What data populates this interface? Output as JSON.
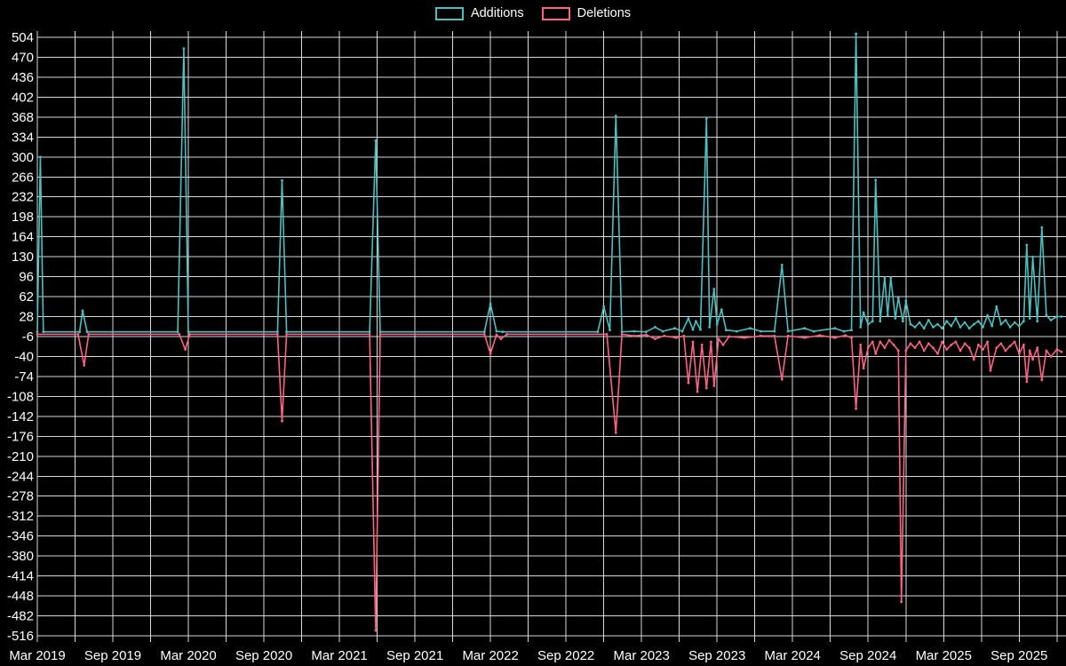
{
  "colors": {
    "background": "#000000",
    "grid": "#d9d9d9",
    "text": "#ffffff",
    "additions": "#4bc0c0",
    "deletions": "#ff6384"
  },
  "chart_data": {
    "type": "line",
    "title": "",
    "xlabel": "",
    "ylabel": "",
    "legend_position": "top",
    "grid": true,
    "x_range": [
      2019.17,
      2025.98
    ],
    "x_grid_step": 0.25,
    "y_axis": {
      "max": 504,
      "min": -516,
      "step": 34,
      "tick_labels": [
        "504",
        "470",
        "436",
        "402",
        "368",
        "334",
        "300",
        "266",
        "232",
        "198",
        "164",
        "130",
        "96",
        "62",
        "28",
        "-6",
        "-40",
        "-74",
        "-108",
        "-142",
        "-176",
        "-210",
        "-244",
        "-278",
        "-312",
        "-346",
        "-380",
        "-414",
        "-448",
        "-482",
        "-516"
      ]
    },
    "x_axis": {
      "ticks": [
        {
          "label": "Mar 2019",
          "pos": 2019.17
        },
        {
          "label": "Sep 2019",
          "pos": 2019.67
        },
        {
          "label": "Mar 2020",
          "pos": 2020.17
        },
        {
          "label": "Sep 2020",
          "pos": 2020.67
        },
        {
          "label": "Mar 2021",
          "pos": 2021.17
        },
        {
          "label": "Sep 2021",
          "pos": 2021.67
        },
        {
          "label": "Mar 2022",
          "pos": 2022.17
        },
        {
          "label": "Sep 2022",
          "pos": 2022.67
        },
        {
          "label": "Mar 2023",
          "pos": 2023.17
        },
        {
          "label": "Sep 2023",
          "pos": 2023.67
        },
        {
          "label": "Mar 2024",
          "pos": 2024.17
        },
        {
          "label": "Sep 2024",
          "pos": 2024.67
        },
        {
          "label": "Mar 2025",
          "pos": 2025.17
        },
        {
          "label": "Sep 2025",
          "pos": 2025.67
        }
      ]
    },
    "series": [
      {
        "name": "Deletions",
        "color": "#ff6384",
        "points": [
          [
            2019.17,
            -2
          ],
          [
            2019.44,
            -2
          ],
          [
            2019.48,
            -55
          ],
          [
            2019.51,
            -2
          ],
          [
            2020.11,
            -2
          ],
          [
            2020.15,
            -28
          ],
          [
            2020.18,
            -2
          ],
          [
            2020.76,
            -2
          ],
          [
            2020.79,
            -150
          ],
          [
            2020.82,
            -2
          ],
          [
            2021.37,
            -2
          ],
          [
            2021.41,
            -507
          ],
          [
            2021.44,
            -2
          ],
          [
            2022.13,
            -2
          ],
          [
            2022.17,
            -35
          ],
          [
            2022.21,
            -3
          ],
          [
            2022.24,
            -10
          ],
          [
            2022.28,
            -2
          ],
          [
            2022.94,
            -2
          ],
          [
            2023.0,
            -170
          ],
          [
            2023.04,
            -2
          ],
          [
            2023.12,
            -5
          ],
          [
            2023.2,
            -3
          ],
          [
            2023.26,
            -10
          ],
          [
            2023.32,
            -5
          ],
          [
            2023.4,
            -8
          ],
          [
            2023.45,
            -5
          ],
          [
            2023.48,
            -85
          ],
          [
            2023.51,
            -15
          ],
          [
            2023.54,
            -100
          ],
          [
            2023.57,
            -20
          ],
          [
            2023.6,
            -94
          ],
          [
            2023.63,
            -15
          ],
          [
            2023.65,
            -90
          ],
          [
            2023.68,
            -10
          ],
          [
            2023.71,
            -20
          ],
          [
            2023.75,
            -6
          ],
          [
            2023.85,
            -8
          ],
          [
            2023.96,
            -5
          ],
          [
            2024.05,
            -5
          ],
          [
            2024.1,
            -79
          ],
          [
            2024.14,
            -5
          ],
          [
            2024.25,
            -8
          ],
          [
            2024.35,
            -4
          ],
          [
            2024.45,
            -8
          ],
          [
            2024.52,
            -4
          ],
          [
            2024.56,
            -8
          ],
          [
            2024.59,
            -129
          ],
          [
            2024.62,
            -20
          ],
          [
            2024.64,
            -60
          ],
          [
            2024.67,
            -25
          ],
          [
            2024.7,
            -15
          ],
          [
            2024.72,
            -35
          ],
          [
            2024.75,
            -15
          ],
          [
            2024.78,
            -25
          ],
          [
            2024.81,
            -12
          ],
          [
            2024.84,
            -20
          ],
          [
            2024.87,
            -30
          ],
          [
            2024.89,
            -458
          ],
          [
            2024.92,
            -30
          ],
          [
            2024.95,
            -18
          ],
          [
            2024.98,
            -25
          ],
          [
            2025.01,
            -15
          ],
          [
            2025.04,
            -30
          ],
          [
            2025.07,
            -18
          ],
          [
            2025.1,
            -25
          ],
          [
            2025.13,
            -35
          ],
          [
            2025.16,
            -15
          ],
          [
            2025.19,
            -28
          ],
          [
            2025.22,
            -20
          ],
          [
            2025.25,
            -15
          ],
          [
            2025.28,
            -30
          ],
          [
            2025.31,
            -18
          ],
          [
            2025.34,
            -25
          ],
          [
            2025.37,
            -45
          ],
          [
            2025.4,
            -20
          ],
          [
            2025.43,
            -28
          ],
          [
            2025.46,
            -15
          ],
          [
            2025.48,
            -64
          ],
          [
            2025.52,
            -25
          ],
          [
            2025.55,
            -18
          ],
          [
            2025.58,
            -30
          ],
          [
            2025.61,
            -22
          ],
          [
            2025.64,
            -15
          ],
          [
            2025.67,
            -35
          ],
          [
            2025.7,
            -20
          ],
          [
            2025.72,
            -83
          ],
          [
            2025.74,
            -30
          ],
          [
            2025.76,
            -45
          ],
          [
            2025.79,
            -25
          ],
          [
            2025.82,
            -80
          ],
          [
            2025.85,
            -30
          ],
          [
            2025.88,
            -40
          ],
          [
            2025.92,
            -28
          ],
          [
            2025.95,
            -32
          ]
        ]
      },
      {
        "name": "Additions",
        "color": "#4bc0c0",
        "points": [
          [
            2019.17,
            2
          ],
          [
            2019.19,
            300
          ],
          [
            2019.21,
            2
          ],
          [
            2019.45,
            2
          ],
          [
            2019.47,
            38
          ],
          [
            2019.5,
            2
          ],
          [
            2020.1,
            2
          ],
          [
            2020.14,
            485
          ],
          [
            2020.17,
            2
          ],
          [
            2020.76,
            2
          ],
          [
            2020.79,
            260
          ],
          [
            2020.82,
            2
          ],
          [
            2021.37,
            2
          ],
          [
            2021.41,
            328
          ],
          [
            2021.44,
            2
          ],
          [
            2022.13,
            2
          ],
          [
            2022.17,
            50
          ],
          [
            2022.21,
            3
          ],
          [
            2022.25,
            2
          ],
          [
            2022.88,
            2
          ],
          [
            2022.92,
            45
          ],
          [
            2022.96,
            5
          ],
          [
            2023.0,
            370
          ],
          [
            2023.04,
            2
          ],
          [
            2023.12,
            3
          ],
          [
            2023.2,
            2
          ],
          [
            2023.26,
            10
          ],
          [
            2023.31,
            3
          ],
          [
            2023.39,
            8
          ],
          [
            2023.44,
            3
          ],
          [
            2023.48,
            25
          ],
          [
            2023.51,
            6
          ],
          [
            2023.53,
            20
          ],
          [
            2023.56,
            6
          ],
          [
            2023.6,
            366
          ],
          [
            2023.62,
            10
          ],
          [
            2023.65,
            75
          ],
          [
            2023.67,
            15
          ],
          [
            2023.7,
            40
          ],
          [
            2023.73,
            5
          ],
          [
            2023.8,
            3
          ],
          [
            2023.89,
            8
          ],
          [
            2023.96,
            3
          ],
          [
            2024.05,
            3
          ],
          [
            2024.1,
            116
          ],
          [
            2024.14,
            3
          ],
          [
            2024.25,
            8
          ],
          [
            2024.31,
            3
          ],
          [
            2024.45,
            8
          ],
          [
            2024.51,
            3
          ],
          [
            2024.56,
            5
          ],
          [
            2024.59,
            510
          ],
          [
            2024.62,
            10
          ],
          [
            2024.64,
            35
          ],
          [
            2024.67,
            15
          ],
          [
            2024.7,
            20
          ],
          [
            2024.72,
            261
          ],
          [
            2024.75,
            20
          ],
          [
            2024.78,
            95
          ],
          [
            2024.8,
            30
          ],
          [
            2024.82,
            95
          ],
          [
            2024.85,
            25
          ],
          [
            2024.87,
            60
          ],
          [
            2024.9,
            20
          ],
          [
            2024.92,
            55
          ],
          [
            2024.95,
            15
          ],
          [
            2024.98,
            10
          ],
          [
            2025.01,
            18
          ],
          [
            2025.04,
            8
          ],
          [
            2025.07,
            22
          ],
          [
            2025.1,
            10
          ],
          [
            2025.13,
            15
          ],
          [
            2025.16,
            8
          ],
          [
            2025.19,
            20
          ],
          [
            2025.22,
            12
          ],
          [
            2025.25,
            25
          ],
          [
            2025.28,
            10
          ],
          [
            2025.31,
            18
          ],
          [
            2025.34,
            8
          ],
          [
            2025.37,
            15
          ],
          [
            2025.4,
            20
          ],
          [
            2025.43,
            10
          ],
          [
            2025.46,
            30
          ],
          [
            2025.49,
            12
          ],
          [
            2025.52,
            45
          ],
          [
            2025.55,
            15
          ],
          [
            2025.58,
            22
          ],
          [
            2025.61,
            10
          ],
          [
            2025.64,
            18
          ],
          [
            2025.67,
            12
          ],
          [
            2025.7,
            20
          ],
          [
            2025.72,
            150
          ],
          [
            2025.74,
            25
          ],
          [
            2025.76,
            130
          ],
          [
            2025.79,
            20
          ],
          [
            2025.82,
            180
          ],
          [
            2025.85,
            30
          ],
          [
            2025.88,
            22
          ],
          [
            2025.92,
            28
          ],
          [
            2025.95,
            28
          ]
        ]
      }
    ]
  },
  "legend": {
    "items": [
      {
        "label": "Additions",
        "color": "#4bc0c0"
      },
      {
        "label": "Deletions",
        "color": "#ff6384"
      }
    ]
  }
}
